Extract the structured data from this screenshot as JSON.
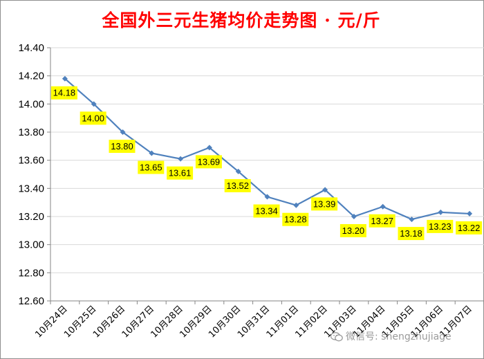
{
  "title": "全国外三元生猪均价走势图 · 元/斤",
  "watermark": "微信号: shengzhujiage",
  "colors": {
    "title": "#ff0000",
    "line": "#4f81bd",
    "label_bg": "#ffff00",
    "grid": "#d9d9d9",
    "axis": "#868686"
  },
  "chart_data": {
    "type": "line",
    "title": "全国外三元生猪均价走势图 · 元/斤",
    "xlabel": "",
    "ylabel": "",
    "ylim": [
      12.6,
      14.4
    ],
    "y_ticks": [
      12.6,
      12.8,
      13.0,
      13.2,
      13.4,
      13.6,
      13.8,
      14.0,
      14.2,
      14.4
    ],
    "grid": true,
    "legend": "none",
    "categories": [
      "10月24日",
      "10月25日",
      "10月26日",
      "10月27日",
      "10月28日",
      "10月29日",
      "10月30日",
      "10月31日",
      "11月01日",
      "11月02日",
      "11月03日",
      "11月04日",
      "11月05日",
      "11月06日",
      "11月07日"
    ],
    "values": [
      14.18,
      14.0,
      13.8,
      13.65,
      13.61,
      13.69,
      13.52,
      13.34,
      13.28,
      13.39,
      13.2,
      13.27,
      13.18,
      13.23,
      13.22
    ],
    "data_labels": true
  }
}
